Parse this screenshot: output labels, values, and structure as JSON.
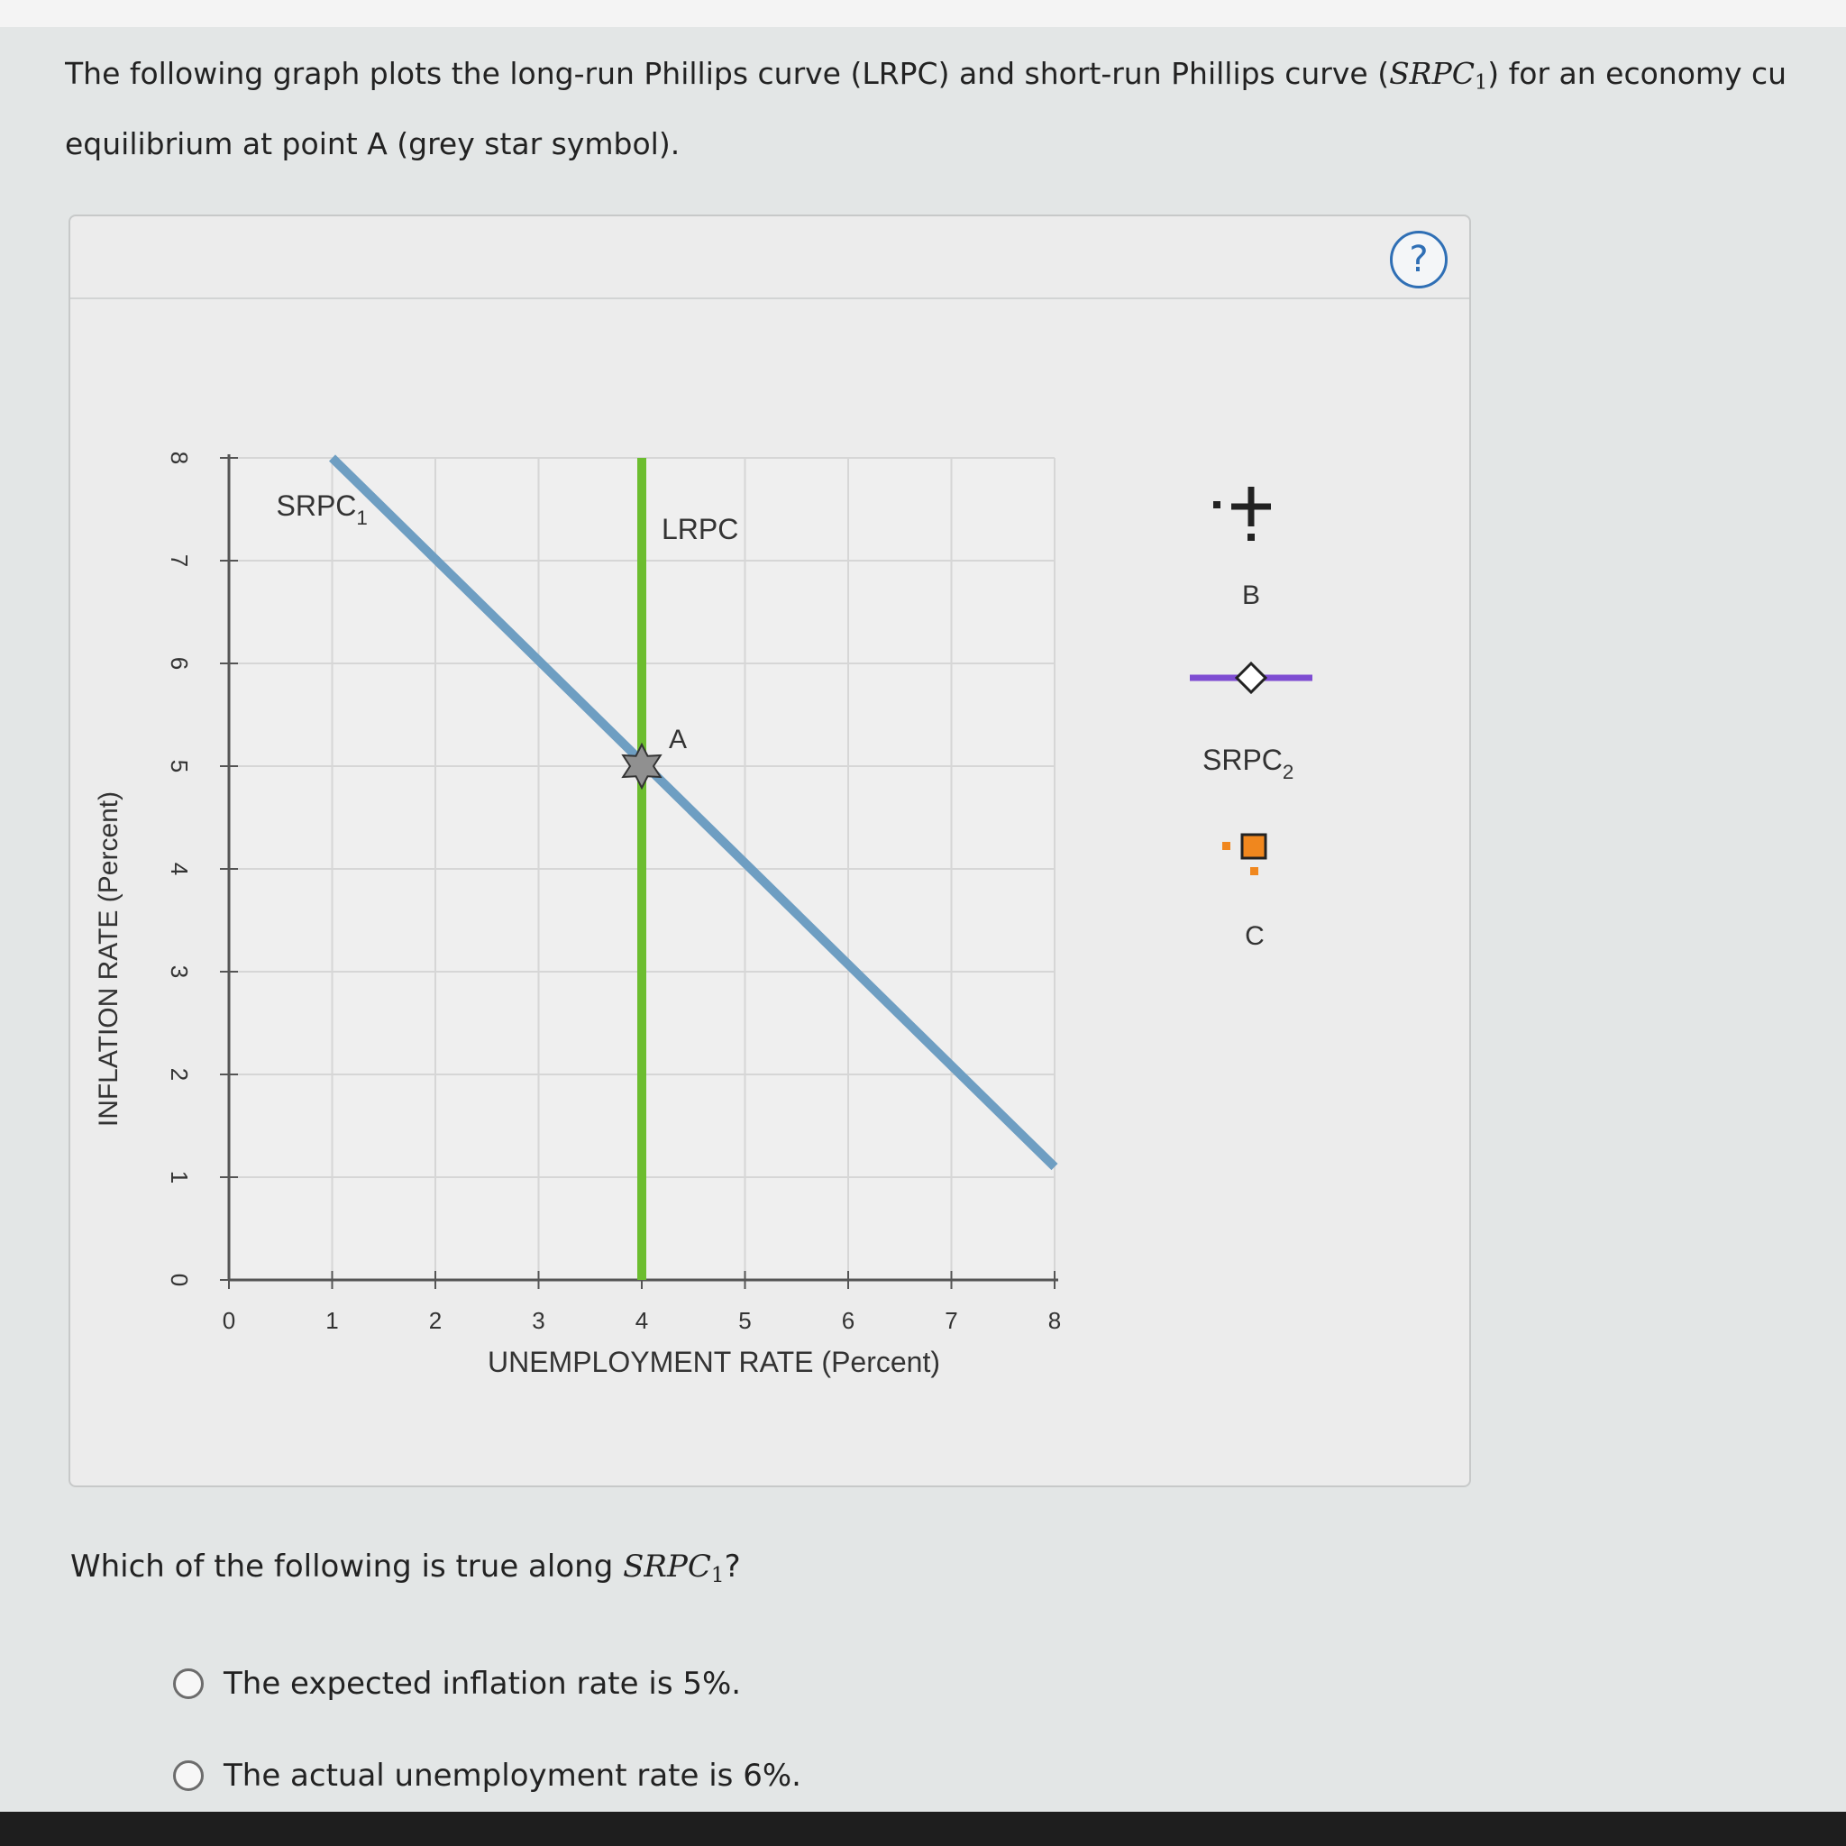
{
  "intro": {
    "line1_prefix": "The following graph plots the long-run Phillips curve (LRPC) and short-run Phillips curve (",
    "srpc_symbol": "SRPC",
    "srpc_sub": "1",
    "line1_suffix": ") for an economy cu",
    "line2": "equilibrium at point A (grey star symbol)."
  },
  "help": {
    "label": "?"
  },
  "chart_data": {
    "type": "line",
    "xlabel": "UNEMPLOYMENT RATE (Percent)",
    "ylabel": "INFLATION RATE (Percent)",
    "xlim": [
      0,
      8
    ],
    "ylim": [
      0,
      8
    ],
    "x_ticks": [
      "0",
      "1",
      "2",
      "3",
      "4",
      "5",
      "6",
      "7",
      "8"
    ],
    "y_ticks": [
      "0",
      "1",
      "2",
      "3",
      "4",
      "5",
      "6",
      "7",
      "8"
    ],
    "grid": true,
    "series": [
      {
        "name": "SRPC",
        "name_sub": "1",
        "color": "#6e9ec2",
        "points": [
          [
            1,
            8
          ],
          [
            8,
            1.1
          ]
        ]
      },
      {
        "name": "LRPC",
        "color": "#6cbd2f",
        "points": [
          [
            4,
            8
          ],
          [
            4,
            0
          ]
        ]
      }
    ],
    "points": [
      {
        "label": "A",
        "x": 4,
        "y": 5,
        "marker": "star",
        "color": "#909090"
      }
    ]
  },
  "palette": {
    "b_label": "B",
    "b_color": "#222222",
    "srpc2_label": "SRPC",
    "srpc2_sub": "2",
    "srpc2_color": "#7e4dd2",
    "c_label": "C",
    "c_color": "#f0871e"
  },
  "question": {
    "prefix": "Which of the following is true along ",
    "symbol": "SRPC",
    "sub": "1",
    "suffix": "?"
  },
  "options": [
    {
      "label": "The expected inflation rate is 5%."
    },
    {
      "label": "The actual unemployment rate is 6%."
    }
  ]
}
